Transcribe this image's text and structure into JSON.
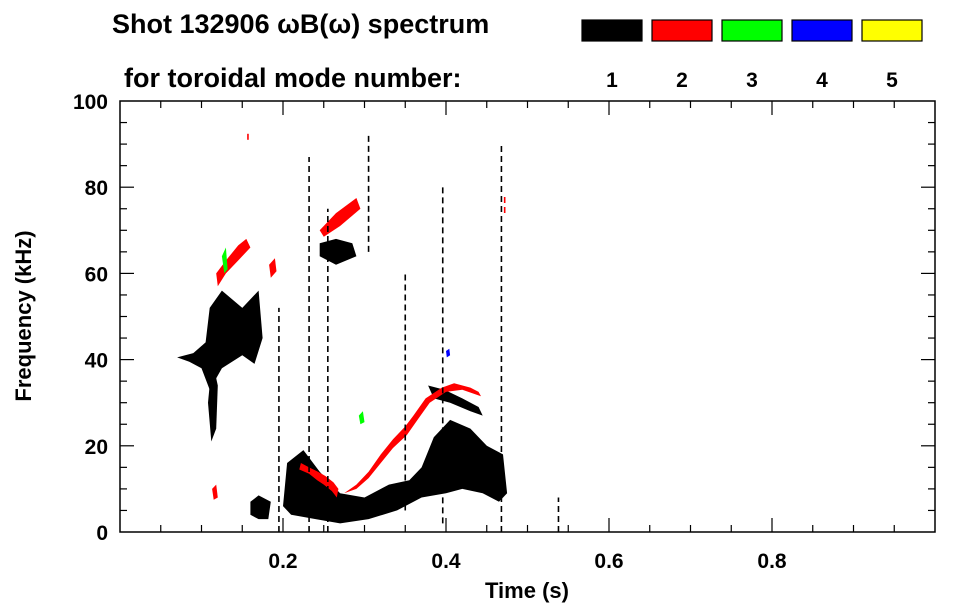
{
  "chart_data": {
    "type": "heatmap",
    "title_line1": "Shot 132906 ωB(ω) spectrum",
    "title_line2": "for toroidal mode number:",
    "xlabel": "Time (s)",
    "ylabel": "Frequency (kHz)",
    "xlim": [
      0.0,
      1.0
    ],
    "ylim": [
      0,
      100
    ],
    "x_ticks": [
      0.2,
      0.4,
      0.6,
      0.8
    ],
    "x_tick_labels": [
      "0.2",
      "0.4",
      "0.6",
      "0.8"
    ],
    "y_ticks": [
      0,
      20,
      40,
      60,
      80,
      100
    ],
    "y_tick_labels": [
      "0",
      "20",
      "40",
      "60",
      "80",
      "100"
    ],
    "legend": {
      "placement": "top-right",
      "entries": [
        {
          "label": "1",
          "color": "#000000"
        },
        {
          "label": "2",
          "color": "#ff0000"
        },
        {
          "label": "3",
          "color": "#00ff00"
        },
        {
          "label": "4",
          "color": "#0000ff"
        },
        {
          "label": "5",
          "color": "#ffff00"
        }
      ]
    },
    "regions": [
      {
        "mode": "1",
        "points": [
          [
            0.07,
            40.5
          ],
          [
            0.09,
            41.5
          ],
          [
            0.105,
            44
          ],
          [
            0.11,
            52
          ],
          [
            0.125,
            56
          ],
          [
            0.15,
            52
          ],
          [
            0.17,
            56
          ],
          [
            0.175,
            45
          ],
          [
            0.165,
            39
          ],
          [
            0.15,
            41
          ],
          [
            0.125,
            38
          ],
          [
            0.11,
            33
          ],
          [
            0.1,
            38
          ],
          [
            0.085,
            39.5
          ]
        ]
      },
      {
        "mode": "1",
        "points": [
          [
            0.113,
            40
          ],
          [
            0.12,
            34
          ],
          [
            0.118,
            24
          ],
          [
            0.112,
            21
          ],
          [
            0.108,
            30
          ]
        ]
      },
      {
        "mode": "1",
        "points": [
          [
            0.16,
            7
          ],
          [
            0.17,
            8.5
          ],
          [
            0.185,
            7
          ],
          [
            0.182,
            3
          ],
          [
            0.17,
            3
          ],
          [
            0.16,
            4
          ]
        ]
      },
      {
        "mode": "1",
        "points": [
          [
            0.205,
            16
          ],
          [
            0.225,
            19
          ],
          [
            0.245,
            14
          ],
          [
            0.27,
            9
          ],
          [
            0.3,
            8
          ],
          [
            0.33,
            11
          ],
          [
            0.355,
            12
          ],
          [
            0.37,
            15
          ],
          [
            0.385,
            22
          ],
          [
            0.405,
            26
          ],
          [
            0.43,
            24
          ],
          [
            0.45,
            20
          ],
          [
            0.47,
            18
          ],
          [
            0.475,
            9
          ],
          [
            0.465,
            7
          ],
          [
            0.445,
            9
          ],
          [
            0.42,
            10
          ],
          [
            0.4,
            9
          ],
          [
            0.37,
            8
          ],
          [
            0.34,
            5
          ],
          [
            0.305,
            3
          ],
          [
            0.27,
            2
          ],
          [
            0.24,
            3
          ],
          [
            0.21,
            4
          ],
          [
            0.2,
            6
          ]
        ]
      },
      {
        "mode": "1",
        "points": [
          [
            0.245,
            67
          ],
          [
            0.265,
            68
          ],
          [
            0.285,
            67
          ],
          [
            0.29,
            64
          ],
          [
            0.265,
            62
          ],
          [
            0.245,
            64
          ]
        ]
      },
      {
        "mode": "1",
        "points": [
          [
            0.378,
            34
          ],
          [
            0.398,
            33
          ],
          [
            0.42,
            31
          ],
          [
            0.44,
            29
          ],
          [
            0.445,
            27
          ],
          [
            0.43,
            28
          ],
          [
            0.405,
            30
          ],
          [
            0.385,
            31
          ]
        ]
      },
      {
        "mode": "2",
        "points": [
          [
            0.22,
            14.5
          ],
          [
            0.232,
            13.5
          ],
          [
            0.242,
            12
          ],
          [
            0.25,
            11
          ],
          [
            0.26,
            9.5
          ],
          [
            0.266,
            8
          ],
          [
            0.268,
            10
          ],
          [
            0.262,
            11.5
          ],
          [
            0.252,
            13
          ],
          [
            0.243,
            14
          ],
          [
            0.232,
            15
          ],
          [
            0.222,
            16
          ]
        ]
      },
      {
        "mode": "2",
        "points": [
          [
            0.275,
            9
          ],
          [
            0.29,
            11
          ],
          [
            0.305,
            14
          ],
          [
            0.32,
            18
          ],
          [
            0.335,
            21.5
          ],
          [
            0.35,
            24.5
          ],
          [
            0.36,
            27
          ],
          [
            0.375,
            31
          ],
          [
            0.395,
            33.5
          ],
          [
            0.41,
            34.5
          ],
          [
            0.43,
            33.5
          ],
          [
            0.44,
            32.5
          ],
          [
            0.443,
            31.5
          ],
          [
            0.42,
            33
          ],
          [
            0.4,
            32.5
          ],
          [
            0.38,
            30
          ],
          [
            0.365,
            26
          ],
          [
            0.352,
            22.5
          ],
          [
            0.335,
            19.5
          ],
          [
            0.32,
            16
          ],
          [
            0.305,
            12.5
          ],
          [
            0.29,
            10
          ]
        ]
      },
      {
        "mode": "2",
        "points": [
          [
            0.118,
            60
          ],
          [
            0.13,
            63
          ],
          [
            0.145,
            66.5
          ],
          [
            0.155,
            68
          ],
          [
            0.16,
            66
          ],
          [
            0.145,
            63
          ],
          [
            0.13,
            60
          ],
          [
            0.12,
            57
          ]
        ]
      },
      {
        "mode": "2",
        "points": [
          [
            0.245,
            70
          ],
          [
            0.265,
            74
          ],
          [
            0.29,
            77.5
          ],
          [
            0.295,
            75
          ],
          [
            0.27,
            71
          ],
          [
            0.25,
            68.5
          ]
        ]
      },
      {
        "mode": "2",
        "points": [
          [
            0.183,
            62
          ],
          [
            0.19,
            63.5
          ],
          [
            0.192,
            60.5
          ],
          [
            0.185,
            59
          ]
        ]
      },
      {
        "mode": "2",
        "points": [
          [
            0.113,
            10
          ],
          [
            0.118,
            11
          ],
          [
            0.12,
            8
          ],
          [
            0.115,
            7.5
          ]
        ]
      },
      {
        "mode": "3",
        "points": [
          [
            0.125,
            64
          ],
          [
            0.13,
            66
          ],
          [
            0.132,
            61
          ],
          [
            0.128,
            60
          ]
        ]
      },
      {
        "mode": "3",
        "points": [
          [
            0.293,
            27
          ],
          [
            0.298,
            28
          ],
          [
            0.3,
            25.5
          ],
          [
            0.295,
            25
          ]
        ]
      },
      {
        "mode": "4",
        "points": [
          [
            0.4,
            42
          ],
          [
            0.404,
            42.5
          ],
          [
            0.405,
            41
          ],
          [
            0.401,
            40.5
          ]
        ]
      }
    ],
    "streaks": [
      {
        "mode": "1",
        "x": 0.232,
        "y": [
          0,
          87
        ]
      },
      {
        "mode": "1",
        "x": 0.305,
        "y": [
          65,
          92
        ]
      },
      {
        "mode": "1",
        "x": 0.396,
        "y": [
          2,
          80
        ]
      },
      {
        "mode": "1",
        "x": 0.468,
        "y": [
          0,
          90
        ]
      },
      {
        "mode": "1",
        "x": 0.195,
        "y": [
          0,
          52
        ]
      },
      {
        "mode": "1",
        "x": 0.255,
        "y": [
          0,
          75
        ]
      },
      {
        "mode": "1",
        "x": 0.35,
        "y": [
          5,
          60
        ]
      },
      {
        "mode": "1",
        "x": 0.538,
        "y": [
          0,
          8
        ]
      },
      {
        "mode": "2",
        "x": 0.472,
        "y": [
          74,
          78
        ]
      },
      {
        "mode": "2",
        "x": 0.157,
        "y": [
          91,
          93
        ]
      }
    ]
  }
}
